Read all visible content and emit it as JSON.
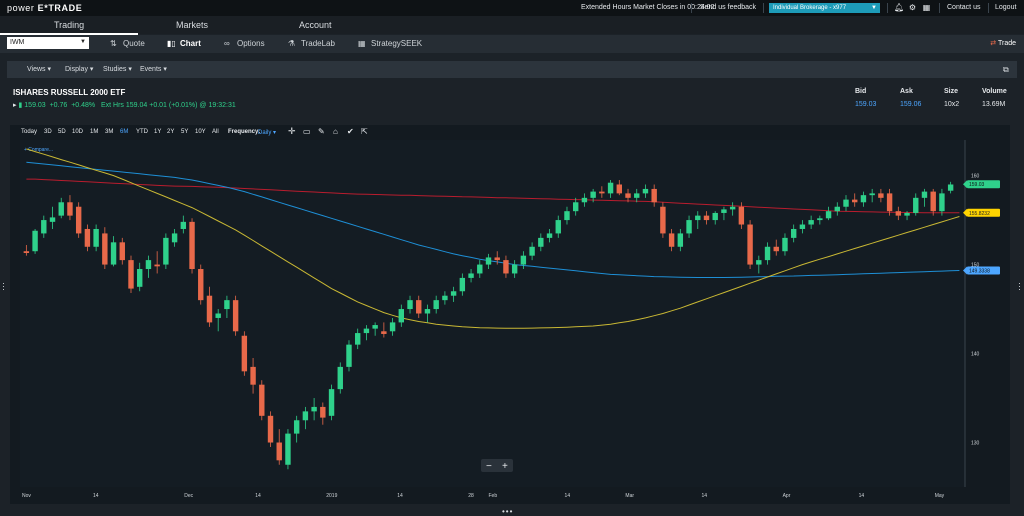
{
  "topbar": {
    "brand_prefix": "power",
    "brand_name": "E*TRADE",
    "market_notice": "Extended Hours Market Closes in 00:24:02",
    "feedback": "Send us feedback",
    "account": "Individual Brokerage - x977",
    "contact": "Contact us",
    "logout": "Logout"
  },
  "nav": {
    "tabs": [
      {
        "label": "Trading"
      },
      {
        "label": "Markets"
      },
      {
        "label": "Account"
      }
    ]
  },
  "subnav": {
    "symbol": "IWM",
    "items": [
      {
        "label": "Quote"
      },
      {
        "label": "Chart"
      },
      {
        "label": "Options"
      },
      {
        "label": "TradeLab"
      },
      {
        "label": "StrategySEEK"
      }
    ],
    "trade_label": "Trade"
  },
  "toolbar": {
    "items": [
      {
        "label": "Views"
      },
      {
        "label": "Display"
      },
      {
        "label": "Studies"
      },
      {
        "label": "Events"
      }
    ]
  },
  "quote": {
    "name": "ISHARES RUSSELL 2000 ETF",
    "last": "159.03",
    "change": "+0.76",
    "change_pct": "+0.48%",
    "ext_hours": "Ext Hrs 159.04 +0.01 (+0.01%) @ 19:32:31",
    "headers": {
      "bid": "Bid",
      "ask": "Ask",
      "size": "Size",
      "volume": "Volume"
    },
    "bid": "159.03",
    "ask": "159.06",
    "size": "10x2",
    "volume": "13.69M"
  },
  "range_bar": {
    "ranges": [
      "Today",
      "3D",
      "5D",
      "10D",
      "1M",
      "3M",
      "6M",
      "YTD",
      "1Y",
      "2Y",
      "5Y",
      "10Y",
      "All"
    ],
    "active": "6M",
    "frequency_label": "Frequency:",
    "frequency_value": "Daily"
  },
  "chart_data": {
    "type": "candlestick",
    "symbol": "IWM",
    "compare_label": "+ Compare...",
    "x_tick_labels": [
      "Nov",
      "14",
      "Dec",
      "14",
      "2019",
      "14",
      "28",
      "Feb",
      "14",
      "Mar",
      "14",
      "Apr",
      "14",
      "May"
    ],
    "y_tick_labels": [
      "130",
      "140",
      "150",
      "160"
    ],
    "ylim": [
      125,
      164
    ],
    "price_labels": [
      {
        "value": "159.03",
        "color": "#2fd18b"
      },
      {
        "value": "155.8232",
        "color": "#ffd400"
      },
      {
        "value": "149.3338",
        "color": "#4da6ff"
      }
    ],
    "candles": [
      {
        "o": 151.5,
        "h": 152.2,
        "l": 151.0,
        "c": 151.3
      },
      {
        "o": 151.5,
        "h": 154.0,
        "l": 151.2,
        "c": 153.8
      },
      {
        "o": 153.5,
        "h": 155.5,
        "l": 153.0,
        "c": 155.0
      },
      {
        "o": 154.8,
        "h": 156.5,
        "l": 154.0,
        "c": 155.3
      },
      {
        "o": 155.5,
        "h": 157.5,
        "l": 155.2,
        "c": 157.0
      },
      {
        "o": 157.0,
        "h": 157.8,
        "l": 155.0,
        "c": 155.5
      },
      {
        "o": 156.5,
        "h": 157.0,
        "l": 153.0,
        "c": 153.5
      },
      {
        "o": 154.0,
        "h": 154.5,
        "l": 151.5,
        "c": 152.0
      },
      {
        "o": 152.0,
        "h": 154.5,
        "l": 151.5,
        "c": 154.0
      },
      {
        "o": 153.5,
        "h": 154.2,
        "l": 149.5,
        "c": 150.0
      },
      {
        "o": 150.0,
        "h": 153.2,
        "l": 149.8,
        "c": 152.5
      },
      {
        "o": 152.5,
        "h": 153.0,
        "l": 150.0,
        "c": 150.5
      },
      {
        "o": 150.5,
        "h": 151.0,
        "l": 146.8,
        "c": 147.3
      },
      {
        "o": 147.5,
        "h": 150.2,
        "l": 147.0,
        "c": 149.5
      },
      {
        "o": 149.5,
        "h": 151.0,
        "l": 148.5,
        "c": 150.5
      },
      {
        "o": 150.0,
        "h": 151.5,
        "l": 149.0,
        "c": 149.8
      },
      {
        "o": 150.0,
        "h": 153.5,
        "l": 149.5,
        "c": 153.0
      },
      {
        "o": 152.5,
        "h": 154.0,
        "l": 152.0,
        "c": 153.5
      },
      {
        "o": 154.0,
        "h": 155.5,
        "l": 153.5,
        "c": 154.8
      },
      {
        "o": 154.8,
        "h": 155.2,
        "l": 149.0,
        "c": 149.5
      },
      {
        "o": 149.5,
        "h": 150.0,
        "l": 145.5,
        "c": 146.0
      },
      {
        "o": 146.5,
        "h": 147.5,
        "l": 143.0,
        "c": 143.5
      },
      {
        "o": 144.0,
        "h": 145.0,
        "l": 142.5,
        "c": 144.5
      },
      {
        "o": 145.0,
        "h": 146.5,
        "l": 144.0,
        "c": 146.0
      },
      {
        "o": 146.0,
        "h": 146.5,
        "l": 142.0,
        "c": 142.5
      },
      {
        "o": 142.0,
        "h": 142.5,
        "l": 137.5,
        "c": 138.0
      },
      {
        "o": 138.5,
        "h": 139.5,
        "l": 135.5,
        "c": 136.5
      },
      {
        "o": 136.5,
        "h": 137.0,
        "l": 132.5,
        "c": 133.0
      },
      {
        "o": 133.0,
        "h": 133.5,
        "l": 129.5,
        "c": 130.0
      },
      {
        "o": 130.0,
        "h": 131.5,
        "l": 127.5,
        "c": 128.0
      },
      {
        "o": 127.5,
        "h": 131.5,
        "l": 127.0,
        "c": 131.0
      },
      {
        "o": 131.0,
        "h": 133.0,
        "l": 130.0,
        "c": 132.5
      },
      {
        "o": 132.5,
        "h": 134.0,
        "l": 131.5,
        "c": 133.5
      },
      {
        "o": 133.5,
        "h": 135.0,
        "l": 132.5,
        "c": 134.0
      },
      {
        "o": 134.0,
        "h": 134.5,
        "l": 132.0,
        "c": 132.8
      },
      {
        "o": 133.0,
        "h": 136.5,
        "l": 132.5,
        "c": 136.0
      },
      {
        "o": 136.0,
        "h": 139.0,
        "l": 135.5,
        "c": 138.5
      },
      {
        "o": 138.5,
        "h": 141.5,
        "l": 138.0,
        "c": 141.0
      },
      {
        "o": 141.0,
        "h": 142.8,
        "l": 140.5,
        "c": 142.3
      },
      {
        "o": 142.3,
        "h": 143.2,
        "l": 141.5,
        "c": 142.8
      },
      {
        "o": 142.8,
        "h": 143.5,
        "l": 142.0,
        "c": 143.2
      },
      {
        "o": 142.5,
        "h": 143.5,
        "l": 141.8,
        "c": 142.2
      },
      {
        "o": 142.5,
        "h": 144.0,
        "l": 142.0,
        "c": 143.5
      },
      {
        "o": 143.5,
        "h": 145.5,
        "l": 143.0,
        "c": 145.0
      },
      {
        "o": 145.0,
        "h": 146.5,
        "l": 144.5,
        "c": 146.0
      },
      {
        "o": 146.0,
        "h": 146.5,
        "l": 144.0,
        "c": 144.5
      },
      {
        "o": 144.5,
        "h": 145.5,
        "l": 143.5,
        "c": 145.0
      },
      {
        "o": 145.0,
        "h": 146.5,
        "l": 144.5,
        "c": 146.0
      },
      {
        "o": 146.0,
        "h": 147.0,
        "l": 145.5,
        "c": 146.5
      },
      {
        "o": 146.5,
        "h": 147.5,
        "l": 145.8,
        "c": 147.0
      },
      {
        "o": 147.0,
        "h": 149.0,
        "l": 146.5,
        "c": 148.5
      },
      {
        "o": 148.5,
        "h": 149.5,
        "l": 148.0,
        "c": 149.0
      },
      {
        "o": 149.0,
        "h": 150.5,
        "l": 148.5,
        "c": 150.0
      },
      {
        "o": 150.0,
        "h": 151.2,
        "l": 149.5,
        "c": 150.8
      },
      {
        "o": 150.8,
        "h": 151.5,
        "l": 150.0,
        "c": 150.5
      },
      {
        "o": 150.5,
        "h": 151.0,
        "l": 148.5,
        "c": 149.0
      },
      {
        "o": 149.0,
        "h": 150.5,
        "l": 148.5,
        "c": 150.0
      },
      {
        "o": 150.0,
        "h": 151.5,
        "l": 149.5,
        "c": 151.0
      },
      {
        "o": 151.0,
        "h": 152.5,
        "l": 150.5,
        "c": 152.0
      },
      {
        "o": 152.0,
        "h": 153.5,
        "l": 151.5,
        "c": 153.0
      },
      {
        "o": 153.0,
        "h": 154.0,
        "l": 152.5,
        "c": 153.5
      },
      {
        "o": 153.5,
        "h": 155.5,
        "l": 153.0,
        "c": 155.0
      },
      {
        "o": 155.0,
        "h": 156.5,
        "l": 154.5,
        "c": 156.0
      },
      {
        "o": 156.0,
        "h": 157.5,
        "l": 155.5,
        "c": 157.0
      },
      {
        "o": 157.0,
        "h": 158.0,
        "l": 156.5,
        "c": 157.5
      },
      {
        "o": 157.5,
        "h": 158.5,
        "l": 157.0,
        "c": 158.2
      },
      {
        "o": 158.2,
        "h": 158.8,
        "l": 157.5,
        "c": 158.0
      },
      {
        "o": 158.0,
        "h": 159.5,
        "l": 157.5,
        "c": 159.2
      },
      {
        "o": 159.0,
        "h": 159.5,
        "l": 157.8,
        "c": 158.0
      },
      {
        "o": 158.0,
        "h": 158.5,
        "l": 157.0,
        "c": 157.5
      },
      {
        "o": 157.5,
        "h": 158.5,
        "l": 157.0,
        "c": 158.0
      },
      {
        "o": 158.0,
        "h": 159.0,
        "l": 157.5,
        "c": 158.5
      },
      {
        "o": 158.5,
        "h": 159.0,
        "l": 156.5,
        "c": 157.0
      },
      {
        "o": 156.5,
        "h": 157.0,
        "l": 153.0,
        "c": 153.5
      },
      {
        "o": 153.5,
        "h": 154.0,
        "l": 151.5,
        "c": 152.0
      },
      {
        "o": 152.0,
        "h": 154.0,
        "l": 151.5,
        "c": 153.5
      },
      {
        "o": 153.5,
        "h": 155.5,
        "l": 153.0,
        "c": 155.0
      },
      {
        "o": 155.0,
        "h": 156.0,
        "l": 154.0,
        "c": 155.5
      },
      {
        "o": 155.5,
        "h": 156.0,
        "l": 154.5,
        "c": 155.0
      },
      {
        "o": 155.0,
        "h": 156.0,
        "l": 154.5,
        "c": 155.8
      },
      {
        "o": 155.8,
        "h": 156.5,
        "l": 155.0,
        "c": 156.2
      },
      {
        "o": 156.2,
        "h": 157.0,
        "l": 155.5,
        "c": 156.5
      },
      {
        "o": 156.5,
        "h": 157.0,
        "l": 154.0,
        "c": 154.5
      },
      {
        "o": 154.5,
        "h": 155.0,
        "l": 149.5,
        "c": 150.0
      },
      {
        "o": 150.0,
        "h": 151.0,
        "l": 149.0,
        "c": 150.5
      },
      {
        "o": 150.5,
        "h": 152.5,
        "l": 150.0,
        "c": 152.0
      },
      {
        "o": 152.0,
        "h": 152.8,
        "l": 151.0,
        "c": 151.5
      },
      {
        "o": 151.5,
        "h": 153.5,
        "l": 151.0,
        "c": 153.0
      },
      {
        "o": 153.0,
        "h": 154.5,
        "l": 152.5,
        "c": 154.0
      },
      {
        "o": 154.0,
        "h": 155.0,
        "l": 153.5,
        "c": 154.5
      },
      {
        "o": 154.5,
        "h": 155.5,
        "l": 154.0,
        "c": 155.0
      },
      {
        "o": 155.0,
        "h": 155.5,
        "l": 154.5,
        "c": 155.2
      },
      {
        "o": 155.2,
        "h": 156.5,
        "l": 155.0,
        "c": 156.0
      },
      {
        "o": 156.0,
        "h": 157.0,
        "l": 155.5,
        "c": 156.5
      },
      {
        "o": 156.5,
        "h": 157.8,
        "l": 156.0,
        "c": 157.3
      },
      {
        "o": 157.3,
        "h": 158.0,
        "l": 156.5,
        "c": 157.0
      },
      {
        "o": 157.0,
        "h": 158.2,
        "l": 156.5,
        "c": 157.8
      },
      {
        "o": 157.8,
        "h": 158.5,
        "l": 157.0,
        "c": 158.0
      },
      {
        "o": 158.0,
        "h": 158.5,
        "l": 157.0,
        "c": 157.5
      },
      {
        "o": 158.0,
        "h": 158.5,
        "l": 155.5,
        "c": 156.0
      },
      {
        "o": 156.0,
        "h": 156.5,
        "l": 155.0,
        "c": 155.5
      },
      {
        "o": 155.5,
        "h": 156.0,
        "l": 155.0,
        "c": 155.8
      },
      {
        "o": 155.8,
        "h": 158.0,
        "l": 155.5,
        "c": 157.5
      },
      {
        "o": 157.5,
        "h": 158.5,
        "l": 156.5,
        "c": 158.2
      },
      {
        "o": 158.2,
        "h": 158.5,
        "l": 155.5,
        "c": 156.0
      },
      {
        "o": 156.0,
        "h": 158.5,
        "l": 155.5,
        "c": 158.0
      },
      {
        "o": 158.3,
        "h": 159.3,
        "l": 158.0,
        "c": 159.0
      }
    ],
    "ma_red": [
      159.6,
      159.6,
      159.55,
      159.5,
      159.45,
      159.4,
      159.35,
      159.3,
      159.25,
      159.2,
      159.15,
      159.1,
      159.05,
      159.0,
      158.95,
      158.9,
      158.85,
      158.82,
      158.8,
      158.78,
      158.75,
      158.72,
      158.7,
      158.65,
      158.6,
      158.55,
      158.5,
      158.45,
      158.4,
      158.35,
      158.3,
      158.25,
      158.2,
      158.15,
      158.1,
      158.05,
      158.0,
      157.95,
      157.92,
      157.9,
      157.88,
      157.85,
      157.82,
      157.8,
      157.78,
      157.75,
      157.72,
      157.7,
      157.68,
      157.65,
      157.62,
      157.6,
      157.58,
      157.55,
      157.52,
      157.5,
      157.48,
      157.45,
      157.42,
      157.4,
      157.38,
      157.35,
      157.32,
      157.3,
      157.28,
      157.25,
      157.22,
      157.2,
      157.18,
      157.15,
      157.12,
      157.1,
      157.05,
      157.0,
      156.95,
      156.9,
      156.85,
      156.8,
      156.75,
      156.7,
      156.65,
      156.6,
      156.55,
      156.5,
      156.45,
      156.4,
      156.35,
      156.3,
      156.25,
      156.2,
      156.15,
      156.1,
      156.05,
      156.0,
      155.98,
      155.96,
      155.94,
      155.92,
      155.9,
      155.88,
      155.86,
      155.85,
      155.84,
      155.83,
      155.83,
      155.82,
      155.82,
      155.82
    ],
    "ma_blue": [
      161.5,
      161.4,
      161.3,
      161.2,
      161.1,
      161.0,
      160.9,
      160.8,
      160.7,
      160.6,
      160.5,
      160.4,
      160.3,
      160.2,
      160.1,
      160.0,
      159.9,
      159.8,
      159.65,
      159.5,
      159.3,
      159.1,
      158.9,
      158.7,
      158.45,
      158.2,
      157.9,
      157.6,
      157.3,
      157.0,
      156.7,
      156.4,
      156.1,
      155.8,
      155.5,
      155.2,
      154.9,
      154.6,
      154.3,
      154.0,
      153.7,
      153.4,
      153.1,
      152.8,
      152.5,
      152.2,
      151.95,
      151.7,
      151.45,
      151.2,
      151.0,
      150.8,
      150.6,
      150.45,
      150.3,
      150.15,
      150.0,
      149.9,
      149.8,
      149.7,
      149.6,
      149.5,
      149.4,
      149.3,
      149.2,
      149.1,
      149.0,
      148.9,
      148.85,
      148.8,
      148.75,
      148.7,
      148.65,
      148.62,
      148.6,
      148.58,
      148.56,
      148.55,
      148.55,
      148.55,
      148.55,
      148.56,
      148.58,
      148.6,
      148.62,
      148.65,
      148.68,
      148.7,
      148.72,
      148.75,
      148.78,
      148.8,
      148.83,
      148.86,
      148.9,
      148.93,
      148.96,
      149.0,
      149.03,
      149.06,
      149.1,
      149.13,
      149.16,
      149.2,
      149.23,
      149.26,
      149.3,
      149.33
    ],
    "ma_yellow": [
      163.0,
      162.7,
      162.4,
      162.1,
      161.8,
      161.5,
      161.2,
      160.9,
      160.6,
      160.3,
      160.0,
      159.6,
      159.2,
      158.8,
      158.4,
      158.0,
      157.6,
      157.2,
      156.8,
      156.4,
      155.9,
      155.4,
      154.9,
      154.4,
      153.9,
      153.3,
      152.7,
      152.1,
      151.5,
      150.9,
      150.3,
      149.7,
      149.1,
      148.5,
      147.9,
      147.3,
      146.8,
      146.3,
      145.8,
      145.4,
      145.0,
      144.6,
      144.3,
      144.0,
      143.8,
      143.6,
      143.45,
      143.3,
      143.2,
      143.1,
      143.0,
      142.95,
      142.9,
      142.88,
      142.86,
      142.85,
      142.85,
      142.85,
      142.86,
      142.88,
      142.9,
      142.93,
      142.96,
      143.0,
      143.05,
      143.1,
      143.2,
      143.3,
      143.45,
      143.6,
      143.8,
      144.0,
      144.25,
      144.5,
      144.8,
      145.1,
      145.45,
      145.8,
      146.15,
      146.5,
      146.85,
      147.2,
      147.55,
      147.9,
      148.25,
      148.6,
      148.95,
      149.3,
      149.65,
      150.0,
      150.3,
      150.6,
      150.9,
      151.2,
      151.5,
      151.8,
      152.1,
      152.4,
      152.7,
      153.0,
      153.3,
      153.6,
      153.9,
      154.2,
      154.5,
      154.8,
      155.1,
      155.4
    ]
  },
  "colors": {
    "up": "#2fd18b",
    "down": "#e8694a",
    "ma_red": "#b81c2e",
    "ma_blue": "#1e8fd6",
    "ma_yellow": "#c9b834",
    "accent": "#1d9bb8"
  }
}
